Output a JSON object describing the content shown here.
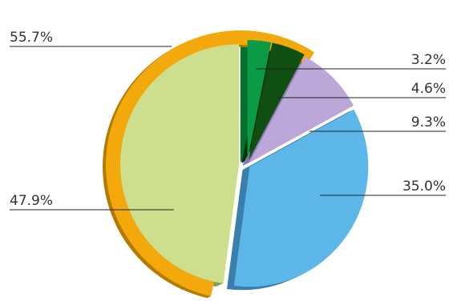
{
  "chart_data": {
    "type": "pie",
    "slices": [
      {
        "value": 3.2,
        "label": "3.2%",
        "color": "#0b9a45",
        "side_color": "#06702f"
      },
      {
        "value": 4.6,
        "label": "4.6%",
        "color": "#0f4f12",
        "side_color": "#08330a"
      },
      {
        "value": 9.3,
        "label": "9.3%",
        "color": "#bba8d8",
        "side_color": "#8c7ab0"
      },
      {
        "value": 35.0,
        "label": "35.0%",
        "color": "#5db6e8",
        "side_color": "#3a7fae"
      },
      {
        "value": 47.9,
        "label": "47.9%",
        "color": "#cddf8c",
        "side_color": "#8e9b5c"
      }
    ],
    "outer_ring": {
      "value": 55.7,
      "label": "55.7%",
      "color": "#f3a90b",
      "side_color": "#b57b00"
    }
  }
}
